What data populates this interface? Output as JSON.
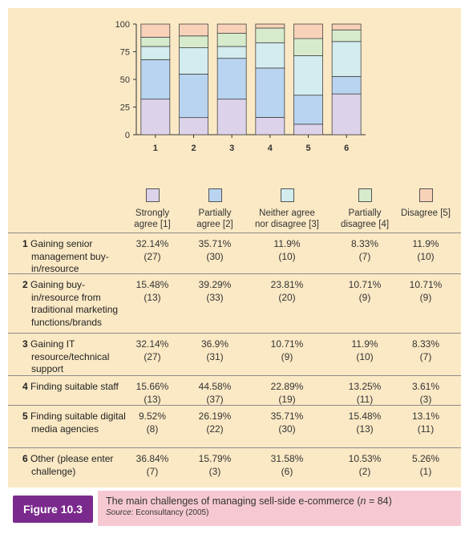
{
  "chart_data": {
    "type": "bar",
    "stacked": true,
    "categories": [
      "1",
      "2",
      "3",
      "4",
      "5",
      "6"
    ],
    "ylim": [
      0,
      100
    ],
    "yticks": [
      "0",
      "25",
      "50",
      "75",
      "100"
    ],
    "grid": false,
    "series": [
      {
        "name": "Strongly agree [1]",
        "color": "#dcd3ea",
        "values": [
          32.14,
          15.48,
          32.14,
          15.66,
          9.52,
          36.84
        ]
      },
      {
        "name": "Partially agree [2]",
        "color": "#b9d4f0",
        "values": [
          35.71,
          39.29,
          36.9,
          44.58,
          26.19,
          15.79
        ]
      },
      {
        "name": "Neither agree nor disagree [3]",
        "color": "#d3ecee",
        "values": [
          11.9,
          23.81,
          10.71,
          22.89,
          35.71,
          31.58
        ]
      },
      {
        "name": "Partially disagree [4]",
        "color": "#d6ebcc",
        "values": [
          8.33,
          10.71,
          11.9,
          13.25,
          15.48,
          10.53
        ]
      },
      {
        "name": "Disagree [5]",
        "color": "#f8d2b8",
        "values": [
          11.9,
          10.71,
          8.33,
          3.61,
          13.1,
          5.26
        ]
      }
    ]
  },
  "legend": [
    {
      "line1": "Strongly",
      "line2": "agree [1]",
      "color": "#dcd3ea"
    },
    {
      "line1": "Partially",
      "line2": "agree [2]",
      "color": "#b9d4f0"
    },
    {
      "line1": "Neither agree",
      "line2": "nor disagree [3]",
      "color": "#d3ecee"
    },
    {
      "line1": "Partially",
      "line2": "disagree [4]",
      "color": "#d6ebcc"
    },
    {
      "line1": "Disagree [5]",
      "line2": "",
      "color": "#f8d2b8"
    }
  ],
  "rows": [
    {
      "num": "1",
      "label": "Gaining senior management buy-in/resource",
      "cells": [
        {
          "pct": "32.14%",
          "n": "(27)"
        },
        {
          "pct": "35.71%",
          "n": "(30)"
        },
        {
          "pct": "11.9%",
          "n": "(10)"
        },
        {
          "pct": "8.33%",
          "n": "(7)"
        },
        {
          "pct": "11.9%",
          "n": "(10)"
        }
      ]
    },
    {
      "num": "2",
      "label": "Gaining buy-in/resource from traditional marketing functions/brands",
      "cells": [
        {
          "pct": "15.48%",
          "n": "(13)"
        },
        {
          "pct": "39.29%",
          "n": "(33)"
        },
        {
          "pct": "23.81%",
          "n": "(20)"
        },
        {
          "pct": "10.71%",
          "n": "(9)"
        },
        {
          "pct": "10.71%",
          "n": "(9)"
        }
      ]
    },
    {
      "num": "3",
      "label": "Gaining IT resource/technical support",
      "cells": [
        {
          "pct": "32.14%",
          "n": "(27)"
        },
        {
          "pct": "36.9%",
          "n": "(31)"
        },
        {
          "pct": "10.71%",
          "n": "(9)"
        },
        {
          "pct": "11.9%",
          "n": "(10)"
        },
        {
          "pct": "8.33%",
          "n": "(7)"
        }
      ]
    },
    {
      "num": "4",
      "label": "Finding suitable staff",
      "cells": [
        {
          "pct": "15.66%",
          "n": "(13)"
        },
        {
          "pct": "44.58%",
          "n": "(37)"
        },
        {
          "pct": "22.89%",
          "n": "(19)"
        },
        {
          "pct": "13.25%",
          "n": "(11)"
        },
        {
          "pct": "3.61%",
          "n": "(3)"
        }
      ]
    },
    {
      "num": "5",
      "label": "Finding suitable digital media agencies",
      "cells": [
        {
          "pct": "9.52%",
          "n": "(8)"
        },
        {
          "pct": "26.19%",
          "n": "(22)"
        },
        {
          "pct": "35.71%",
          "n": "(30)"
        },
        {
          "pct": "15.48%",
          "n": "(13)"
        },
        {
          "pct": "13.1%",
          "n": "(11)"
        }
      ]
    },
    {
      "num": "6",
      "label": "Other (please enter challenge)",
      "cells": [
        {
          "pct": "36.84%",
          "n": "(7)"
        },
        {
          "pct": "15.79%",
          "n": "(3)"
        },
        {
          "pct": "31.58%",
          "n": "(6)"
        },
        {
          "pct": "10.53%",
          "n": "(2)"
        },
        {
          "pct": "5.26%",
          "n": "(1)"
        }
      ]
    }
  ],
  "caption": {
    "tag": "Figure 10.3",
    "title_prefix": "The main challenges of managing sell-side e-commerce (",
    "title_var": "n",
    "title_suffix": " = 84)",
    "source_label": "Source",
    "source_text": ": Econsultancy (2005)"
  }
}
